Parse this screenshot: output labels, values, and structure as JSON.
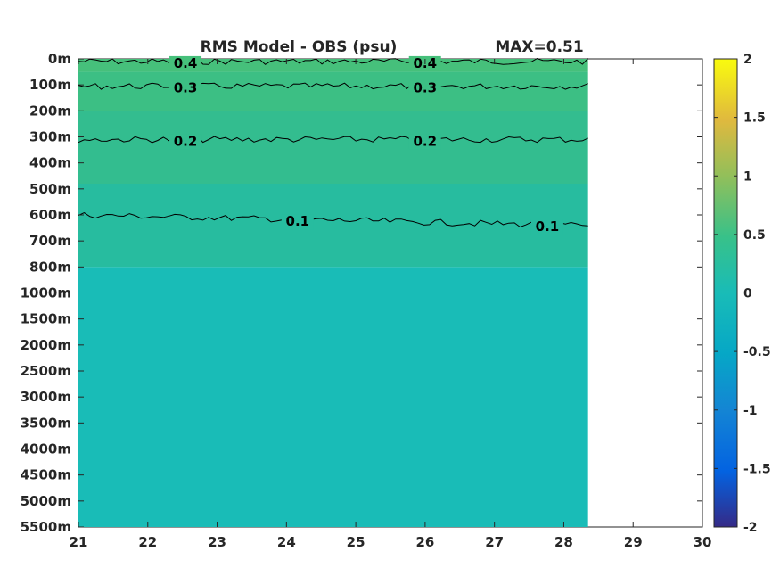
{
  "chart_data": {
    "type": "heatmap",
    "title": "RMS Model - OBS (psu)",
    "annotation": "MAX=0.51",
    "x_ticks": [
      "21",
      "22",
      "23",
      "24",
      "25",
      "26",
      "27",
      "28",
      "29",
      "30"
    ],
    "xlim": [
      21,
      30
    ],
    "data_x_range": [
      21,
      28.35
    ],
    "y_ticks": [
      "0m",
      "100m",
      "200m",
      "300m",
      "400m",
      "500m",
      "600m",
      "700m",
      "800m",
      "1000m",
      "1500m",
      "2000m",
      "2500m",
      "3000m",
      "3500m",
      "4000m",
      "4500m",
      "5000m",
      "5500m"
    ],
    "colorbar": {
      "ticks": [
        "2",
        "1.5",
        "1",
        "0.5",
        "0",
        "-0.5",
        "-1",
        "-1.5",
        "-2"
      ],
      "range": [
        -2,
        2
      ],
      "colormap": "parula"
    },
    "contours": [
      {
        "level": 0.4,
        "label": "0.4",
        "depth_index": 0.1
      },
      {
        "level": 0.3,
        "label": "0.3",
        "depth_index": 1.05
      },
      {
        "level": 0.2,
        "label": "0.2",
        "depth_index": 3.1
      },
      {
        "level": 0.1,
        "label": "0.1",
        "depth_index": 6.0
      }
    ],
    "field_bands": [
      {
        "from_index": 0,
        "to_index": 0.5,
        "value": 0.45
      },
      {
        "from_index": 0.5,
        "to_index": 2.0,
        "value": 0.33
      },
      {
        "from_index": 2.0,
        "to_index": 4.8,
        "value": 0.22
      },
      {
        "from_index": 4.8,
        "to_index": 8.0,
        "value": 0.12
      },
      {
        "from_index": 8.0,
        "to_index": 18,
        "value": 0.05
      }
    ],
    "colors": {
      "band_045": "#46c07b",
      "band_033": "#3cbf84",
      "band_022": "#33bd8f",
      "band_012": "#27bc9f",
      "band_005": "#19bcb7",
      "contour": "#000000"
    }
  }
}
